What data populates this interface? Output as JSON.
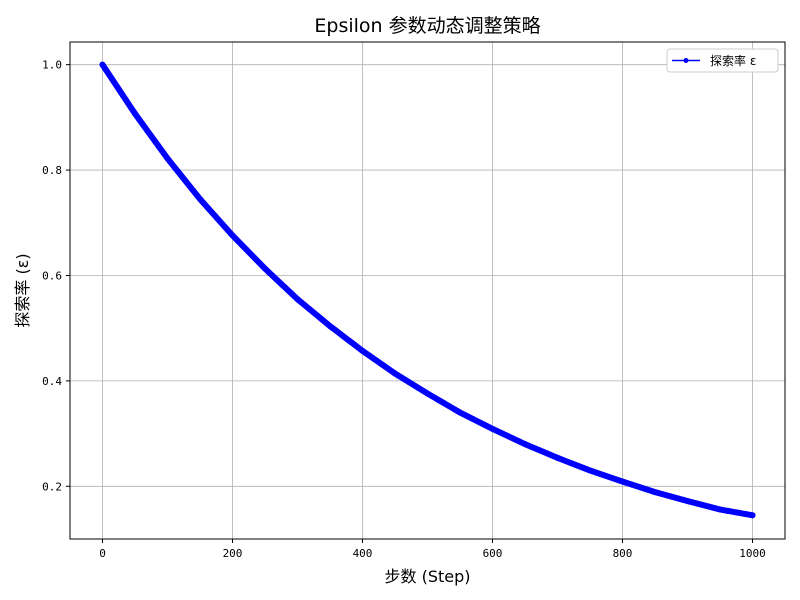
{
  "chart_data": {
    "type": "line",
    "title": "Epsilon 参数动态调整策略",
    "xlabel": "步数 (Step)",
    "ylabel": "探索率 (ε)",
    "xlim": [
      -50,
      1050
    ],
    "ylim": [
      0.1,
      1.043
    ],
    "xticks": [
      0,
      200,
      400,
      600,
      800,
      1000
    ],
    "yticks": [
      0.2,
      0.4,
      0.6,
      0.8,
      1.0
    ],
    "xtick_labels": [
      "0",
      "200",
      "400",
      "600",
      "800",
      "1000"
    ],
    "ytick_labels": [
      "0.2",
      "0.4",
      "0.6",
      "0.8",
      "1.0"
    ],
    "grid": true,
    "legend_position": "top-right",
    "series": [
      {
        "name": "探索率 ε",
        "color": "#0000ff",
        "marker": "circle",
        "x": [
          0,
          50,
          100,
          150,
          200,
          250,
          300,
          350,
          400,
          450,
          500,
          550,
          600,
          650,
          700,
          750,
          800,
          850,
          900,
          950,
          1000
        ],
        "y": [
          1.0,
          0.907,
          0.822,
          0.745,
          0.676,
          0.613,
          0.555,
          0.504,
          0.457,
          0.414,
          0.376,
          0.34,
          0.309,
          0.28,
          0.254,
          0.23,
          0.209,
          0.189,
          0.172,
          0.156,
          0.145
        ]
      }
    ]
  }
}
